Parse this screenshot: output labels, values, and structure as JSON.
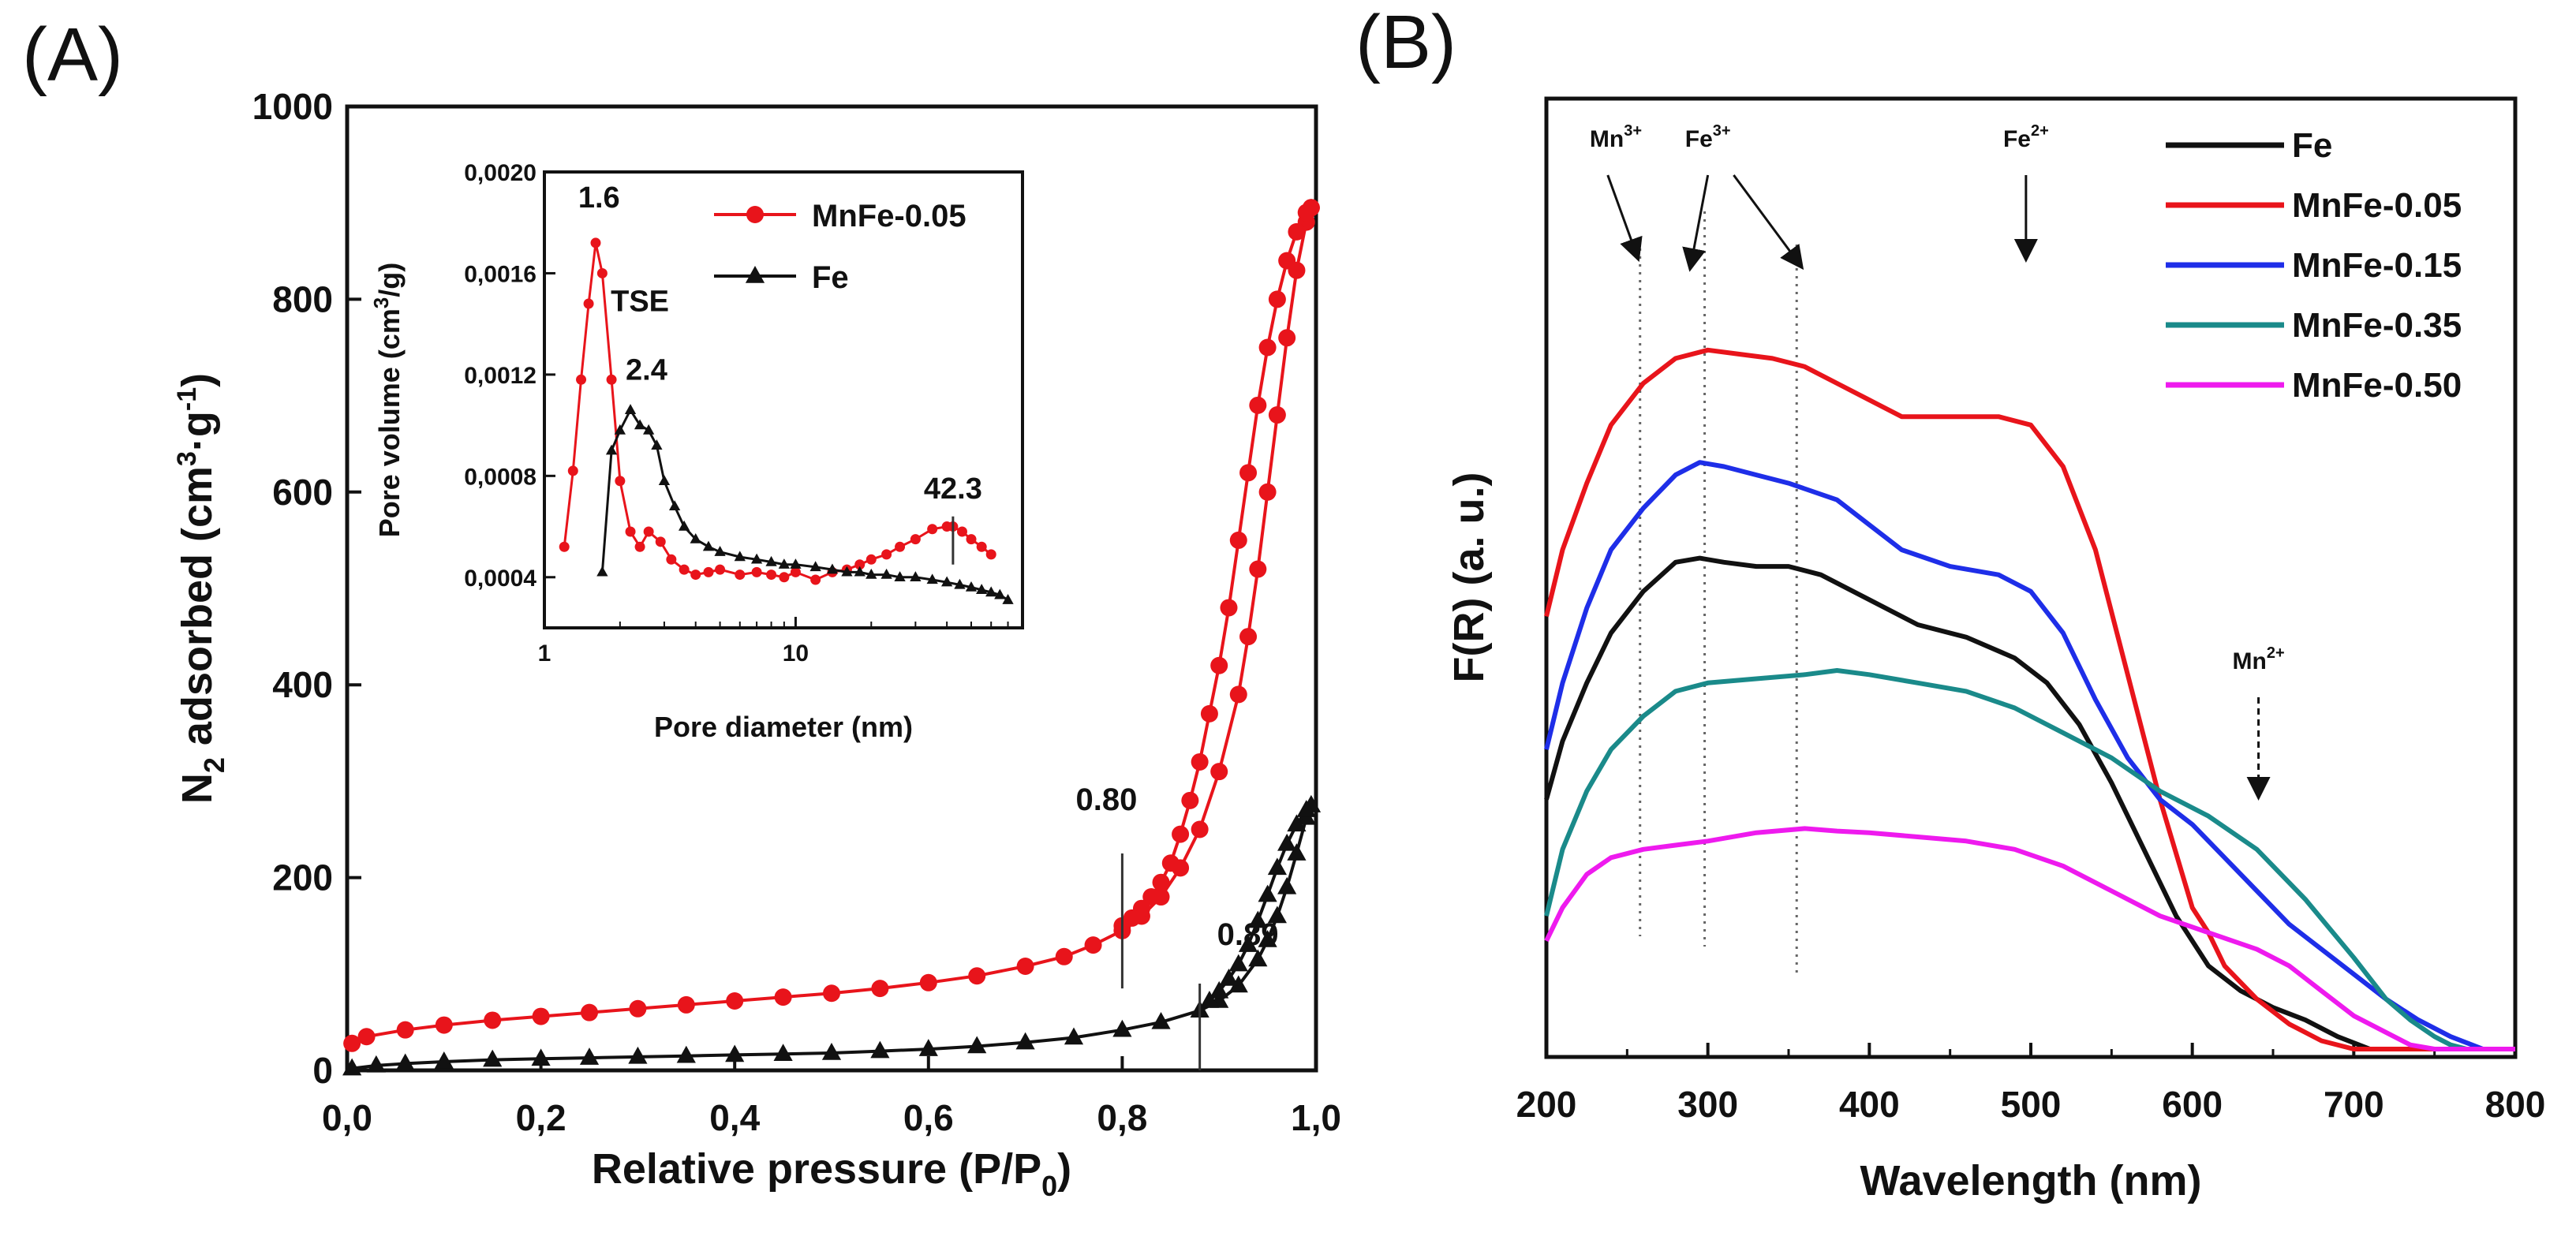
{
  "chart_data": [
    {
      "panel": "(A)",
      "type": "line",
      "xlabel": "Relative pressure (P/P",
      "xlabel_sub": "0",
      "xlabel_end": ")",
      "ylabel": "N",
      "ylabel_sub": "2",
      "ylabel_mid": " adsorbed (cm",
      "ylabel_sup": "3",
      "ylabel_mid2": "·g",
      "ylabel_sup2": "-1",
      "ylabel_end": ")",
      "xlim": [
        0,
        1
      ],
      "ylim": [
        0,
        1000
      ],
      "x_ticks": [
        "0,0",
        "0,2",
        "0,4",
        "0,6",
        "0,8",
        "1,0"
      ],
      "y_ticks": [
        "0",
        "200",
        "400",
        "600",
        "800",
        "1000"
      ],
      "legend": [
        "MnFe-0.05",
        "Fe"
      ],
      "series": [
        {
          "name": "MnFe-0.05",
          "color": "#e8141b",
          "marker": "circle",
          "adsorption": {
            "x": [
              0.005,
              0.02,
              0.06,
              0.1,
              0.15,
              0.2,
              0.25,
              0.3,
              0.35,
              0.4,
              0.45,
              0.5,
              0.55,
              0.6,
              0.65,
              0.7,
              0.74,
              0.77,
              0.8,
              0.82,
              0.84,
              0.86,
              0.88,
              0.9,
              0.92,
              0.93,
              0.94,
              0.95,
              0.96,
              0.97,
              0.98,
              0.99,
              0.995
            ],
            "y": [
              28,
              35,
              42,
              47,
              52,
              56,
              60,
              64,
              68,
              72,
              76,
              80,
              85,
              91,
              98,
              108,
              118,
              130,
              145,
              160,
              180,
              210,
              250,
              310,
              390,
              450,
              520,
              600,
              680,
              760,
              830,
              880,
              895
            ]
          },
          "desorption": {
            "x": [
              0.995,
              0.99,
              0.98,
              0.97,
              0.96,
              0.95,
              0.94,
              0.93,
              0.92,
              0.91,
              0.9,
              0.89,
              0.88,
              0.87,
              0.86,
              0.85,
              0.84,
              0.83,
              0.82,
              0.81,
              0.8
            ],
            "y": [
              895,
              890,
              870,
              840,
              800,
              750,
              690,
              620,
              550,
              480,
              420,
              370,
              320,
              280,
              245,
              215,
              195,
              180,
              168,
              158,
              150
            ]
          }
        },
        {
          "name": "Fe",
          "color": "#111111",
          "marker": "triangle",
          "adsorption": {
            "x": [
              0.005,
              0.03,
              0.06,
              0.1,
              0.15,
              0.2,
              0.25,
              0.3,
              0.35,
              0.4,
              0.45,
              0.5,
              0.55,
              0.6,
              0.65,
              0.7,
              0.75,
              0.8,
              0.84,
              0.88,
              0.9,
              0.92,
              0.94,
              0.95,
              0.96,
              0.97,
              0.98,
              0.99,
              0.995
            ],
            "y": [
              2,
              5,
              7,
              9,
              11,
              12,
              13,
              14,
              15,
              16,
              17,
              18,
              20,
              22,
              25,
              29,
              34,
              42,
              50,
              62,
              72,
              88,
              115,
              135,
              160,
              190,
              225,
              262,
              275
            ]
          },
          "desorption": {
            "x": [
              0.995,
              0.99,
              0.98,
              0.97,
              0.96,
              0.95,
              0.94,
              0.93,
              0.92,
              0.91,
              0.9,
              0.89
            ],
            "y": [
              275,
              270,
              255,
              235,
              210,
              182,
              155,
              130,
              110,
              95,
              82,
              72
            ]
          }
        }
      ],
      "annotations": [
        {
          "text": "0.80",
          "x": 0.8,
          "line_y": [
            85,
            225
          ],
          "label_y": 270
        },
        {
          "text": "0.89",
          "x": 0.88,
          "line_y": [
            0,
            90
          ],
          "label_y": 130
        }
      ],
      "inset": {
        "type": "line",
        "xscale": "log",
        "xlabel": "Pore diameter (nm)",
        "ylabel": "Pore volume (cm",
        "ylabel_sup": "3",
        "ylabel_end": "/g)",
        "xlim": [
          1,
          80
        ],
        "ylim": [
          0.0002,
          0.002
        ],
        "x_ticks": [
          "1",
          "10"
        ],
        "y_ticks": [
          "0,0004",
          "0,0008",
          "0,0012",
          "0,0016",
          "0,0020"
        ],
        "series": [
          {
            "name": "MnFe-0.05",
            "color": "#e8141b",
            "marker": "circle",
            "x": [
              1.2,
              1.3,
              1.4,
              1.5,
              1.6,
              1.7,
              1.85,
              2.0,
              2.2,
              2.4,
              2.6,
              2.9,
              3.2,
              3.6,
              4.0,
              4.5,
              5,
              6,
              7,
              8,
              9,
              10,
              12,
              14,
              16,
              18,
              20,
              23,
              26,
              30,
              35,
              40,
              42.3,
              46,
              50,
              55,
              60
            ],
            "y": [
              0.00052,
              0.00082,
              0.00118,
              0.00148,
              0.00172,
              0.0016,
              0.00118,
              0.00078,
              0.00058,
              0.00052,
              0.00058,
              0.00054,
              0.00047,
              0.00043,
              0.00041,
              0.00042,
              0.00043,
              0.00041,
              0.00042,
              0.00041,
              0.0004,
              0.00042,
              0.00039,
              0.00042,
              0.00043,
              0.00045,
              0.00047,
              0.00049,
              0.00052,
              0.00055,
              0.00059,
              0.0006,
              0.0006,
              0.00058,
              0.00055,
              0.00052,
              0.00049
            ]
          },
          {
            "name": "Fe",
            "color": "#111111",
            "marker": "triangle",
            "x": [
              1.7,
              1.85,
              2.0,
              2.2,
              2.4,
              2.6,
              2.8,
              3.0,
              3.3,
              3.6,
              4.0,
              4.5,
              5,
              6,
              7,
              8,
              9,
              10,
              12,
              14,
              16,
              18,
              20,
              23,
              26,
              30,
              35,
              40,
              45,
              50,
              55,
              60,
              65,
              70
            ],
            "y": [
              0.00042,
              0.0009,
              0.00098,
              0.00106,
              0.001,
              0.00098,
              0.00092,
              0.00078,
              0.00068,
              0.0006,
              0.00055,
              0.00052,
              0.0005,
              0.00048,
              0.00047,
              0.00046,
              0.00045,
              0.00045,
              0.00044,
              0.00043,
              0.00042,
              0.00042,
              0.00041,
              0.00041,
              0.0004,
              0.0004,
              0.00039,
              0.00038,
              0.00037,
              0.00036,
              0.00035,
              0.00034,
              0.00033,
              0.00031
            ]
          }
        ],
        "annotations": [
          {
            "text": "1.6",
            "x": 1.65,
            "y": 0.00186
          },
          {
            "text": "TSE",
            "x": 2.4,
            "y": 0.00145,
            "color": "#3a7fd0"
          },
          {
            "text": "2.4",
            "x": 2.55,
            "y": 0.00118
          },
          {
            "text": "42.3",
            "x": 42.3,
            "y": 0.00071
          }
        ]
      }
    },
    {
      "panel": "(B)",
      "type": "line",
      "xlabel": "Wavelength (nm)",
      "ylabel": "F(R) (a. u.)",
      "xlim": [
        200,
        800
      ],
      "ylim": [
        0,
        1
      ],
      "x_ticks": [
        "200",
        "300",
        "400",
        "500",
        "600",
        "700",
        "800"
      ],
      "legend": [
        "Fe",
        "MnFe-0.05",
        "MnFe-0.15",
        "MnFe-0.35",
        "MnFe-0.50"
      ],
      "series": [
        {
          "name": "Fe",
          "color": "#111111",
          "x": [
            200,
            210,
            225,
            240,
            260,
            280,
            295,
            310,
            330,
            350,
            370,
            400,
            430,
            460,
            490,
            510,
            530,
            550,
            570,
            590,
            610,
            630,
            650,
            670,
            690,
            710,
            730,
            750,
            770,
            790,
            800
          ],
          "y": [
            0.3,
            0.37,
            0.44,
            0.5,
            0.55,
            0.585,
            0.59,
            0.585,
            0.58,
            0.58,
            0.57,
            0.54,
            0.51,
            0.495,
            0.47,
            0.44,
            0.39,
            0.32,
            0.24,
            0.16,
            0.1,
            0.07,
            0.05,
            0.035,
            0.015,
            0.0,
            0.0,
            0.0,
            0.0,
            0.0,
            0.0
          ]
        },
        {
          "name": "MnFe-0.05",
          "color": "#e8141b",
          "x": [
            200,
            210,
            225,
            240,
            260,
            280,
            300,
            320,
            340,
            360,
            380,
            400,
            420,
            450,
            480,
            500,
            520,
            540,
            560,
            580,
            600,
            610,
            620,
            640,
            660,
            680,
            700,
            720,
            740,
            760,
            780,
            800
          ],
          "y": [
            0.52,
            0.6,
            0.68,
            0.75,
            0.8,
            0.83,
            0.84,
            0.835,
            0.83,
            0.82,
            0.8,
            0.78,
            0.76,
            0.76,
            0.76,
            0.75,
            0.7,
            0.6,
            0.45,
            0.3,
            0.17,
            0.14,
            0.1,
            0.06,
            0.03,
            0.01,
            0.0,
            0.0,
            0.0,
            0.0,
            0.0,
            0.0
          ]
        },
        {
          "name": "MnFe-0.15",
          "color": "#1e2ee8",
          "x": [
            200,
            210,
            225,
            240,
            260,
            280,
            295,
            310,
            330,
            350,
            380,
            400,
            420,
            450,
            480,
            500,
            520,
            540,
            560,
            580,
            600,
            620,
            640,
            660,
            680,
            700,
            720,
            740,
            760,
            780,
            800
          ],
          "y": [
            0.36,
            0.44,
            0.53,
            0.6,
            0.65,
            0.69,
            0.705,
            0.7,
            0.69,
            0.68,
            0.66,
            0.63,
            0.6,
            0.58,
            0.57,
            0.55,
            0.5,
            0.42,
            0.35,
            0.3,
            0.27,
            0.23,
            0.19,
            0.15,
            0.12,
            0.09,
            0.06,
            0.035,
            0.015,
            0.0,
            0.0
          ]
        },
        {
          "name": "MnFe-0.35",
          "color": "#1a8a8a",
          "x": [
            200,
            210,
            225,
            240,
            260,
            280,
            300,
            330,
            360,
            380,
            400,
            430,
            460,
            490,
            520,
            550,
            580,
            610,
            640,
            670,
            700,
            720,
            735,
            750,
            760,
            770,
            780,
            800
          ],
          "y": [
            0.16,
            0.24,
            0.31,
            0.36,
            0.4,
            0.43,
            0.44,
            0.445,
            0.45,
            0.455,
            0.45,
            0.44,
            0.43,
            0.41,
            0.38,
            0.35,
            0.31,
            0.28,
            0.24,
            0.18,
            0.11,
            0.06,
            0.035,
            0.015,
            0.005,
            0.0,
            0.0,
            0.0
          ]
        },
        {
          "name": "MnFe-0.50",
          "color": "#ee1aee",
          "x": [
            200,
            210,
            225,
            240,
            260,
            280,
            300,
            330,
            360,
            380,
            400,
            430,
            460,
            490,
            520,
            550,
            580,
            610,
            640,
            660,
            680,
            700,
            720,
            735,
            750,
            770,
            800
          ],
          "y": [
            0.13,
            0.17,
            0.21,
            0.23,
            0.24,
            0.245,
            0.25,
            0.26,
            0.265,
            0.262,
            0.26,
            0.255,
            0.25,
            0.24,
            0.22,
            0.19,
            0.16,
            0.14,
            0.12,
            0.1,
            0.07,
            0.04,
            0.02,
            0.005,
            0.0,
            0.0,
            0.0
          ]
        }
      ],
      "dotted_lines_x": [
        258,
        298,
        355
      ],
      "markers": [
        {
          "label": "Mn",
          "sup": "3+",
          "x": 243,
          "arrows": [
            {
              "from": 238,
              "to": 255
            }
          ],
          "style": "solid"
        },
        {
          "label": "Fe",
          "sup": "3+",
          "x": 300,
          "arrows": [
            {
              "from": 300,
              "to": 290
            },
            {
              "from": 316,
              "to": 355
            }
          ],
          "style": "solid"
        },
        {
          "label": "Fe",
          "sup": "2+",
          "x": 497,
          "arrows": [
            {
              "from": 497,
              "to": 497
            }
          ],
          "style": "solid"
        },
        {
          "label": "Mn",
          "sup": "2+",
          "x": 641,
          "arrows": [
            {
              "from": 641,
              "to": 641
            }
          ],
          "style": "dashed"
        }
      ]
    }
  ]
}
